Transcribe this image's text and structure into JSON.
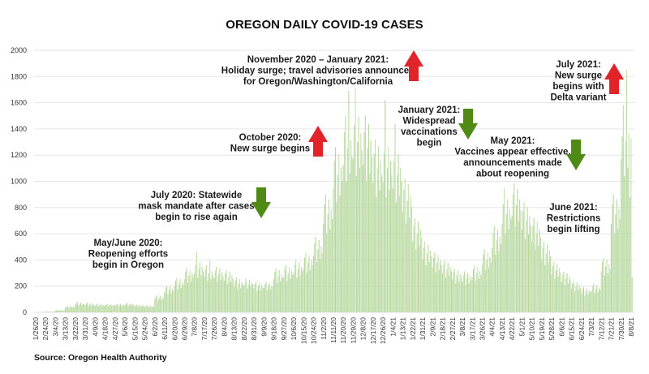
{
  "chart_data": {
    "type": "bar",
    "title": "OREGON DAILY COVID-19 CASES",
    "source": "Source: Oregon Health Authority",
    "ylim": [
      0,
      2000
    ],
    "yticks": [
      0,
      200,
      400,
      600,
      800,
      1000,
      1200,
      1400,
      1600,
      1800,
      2000
    ],
    "grid": true,
    "bar_color": "#b3d699",
    "tick_every_days": 9,
    "tick_labels": [
      "1/26/20",
      "2/24/20",
      "3/4/20",
      "3/13/20",
      "3/22/20",
      "3/31/20",
      "4/9/20",
      "4/18/20",
      "4/27/20",
      "5/6/20",
      "5/15/20",
      "5/24/20",
      "6/2/20",
      "6/11/20",
      "6/20/20",
      "6/29/20",
      "7/8/20",
      "7/17/20",
      "7/26/20",
      "8/4/20",
      "8/13/20",
      "8/22/20",
      "8/31/20",
      "9/9/20",
      "9/18/20",
      "9/27/20",
      "10/6/20",
      "10/15/20",
      "10/24/20",
      "11/2/20",
      "11/11/20",
      "11/20/20",
      "11/29/20",
      "12/8/20",
      "12/17/20",
      "12/26/20",
      "1/4/21",
      "1/13/21",
      "1/22/21",
      "1/31/21",
      "2/9/21",
      "2/18/21",
      "2/27/21",
      "3/8/21",
      "3/17/21",
      "3/26/21",
      "4/4/21",
      "4/13/21",
      "4/22/21",
      "5/1/21",
      "5/10/21",
      "5/19/21",
      "5/28/21",
      "6/6/21",
      "6/15/21",
      "6/24/21",
      "7/3/21",
      "7/12/21",
      "7/21/21",
      "7/30/21",
      "8/8/21"
    ],
    "values": [
      0,
      1,
      2,
      1,
      2,
      3,
      2,
      2,
      3,
      4,
      6,
      6,
      4,
      5,
      6,
      4,
      5,
      5,
      13,
      17,
      18,
      12,
      15,
      17,
      13,
      16,
      14,
      36,
      44,
      48,
      32,
      40,
      46,
      34,
      42,
      38,
      59,
      72,
      78,
      52,
      65,
      75,
      55,
      68,
      62,
      54,
      66,
      72,
      48,
      60,
      69,
      51,
      63,
      57,
      50,
      61,
      66,
      44,
      55,
      63,
      47,
      58,
      52,
      52,
      58,
      64,
      46,
      57,
      61,
      49,
      56,
      54,
      50,
      61,
      66,
      44,
      55,
      63,
      47,
      58,
      52,
      54,
      66,
      72,
      48,
      60,
      69,
      51,
      63,
      57,
      45,
      55,
      60,
      40,
      50,
      58,
      43,
      53,
      48,
      41,
      50,
      54,
      36,
      45,
      52,
      38,
      47,
      43,
      99,
      121,
      132,
      88,
      110,
      127,
      94,
      116,
      105,
      153,
      187,
      204,
      136,
      170,
      196,
      145,
      179,
      162,
      198,
      242,
      264,
      176,
      220,
      253,
      187,
      231,
      209,
      252,
      308,
      336,
      224,
      280,
      322,
      238,
      294,
      266,
      297,
      363,
      460,
      264,
      330,
      380,
      281,
      347,
      314,
      270,
      330,
      360,
      240,
      300,
      400,
      255,
      315,
      285,
      261,
      319,
      348,
      232,
      290,
      334,
      247,
      305,
      276,
      243,
      297,
      324,
      216,
      270,
      311,
      230,
      284,
      257,
      198,
      242,
      264,
      176,
      220,
      253,
      187,
      231,
      209,
      205,
      236,
      258,
      182,
      214,
      247,
      193,
      225,
      215,
      180,
      220,
      240,
      160,
      200,
      230,
      170,
      210,
      190,
      186,
      214,
      234,
      166,
      206,
      224,
      176,
      204,
      196,
      252,
      308,
      336,
      224,
      280,
      322,
      238,
      294,
      266,
      270,
      330,
      360,
      240,
      300,
      345,
      255,
      315,
      285,
      297,
      363,
      396,
      264,
      330,
      380,
      281,
      347,
      314,
      342,
      418,
      456,
      304,
      380,
      437,
      323,
      399,
      361,
      432,
      528,
      576,
      384,
      480,
      552,
      408,
      504,
      456,
      675,
      825,
      900,
      600,
      750,
      863,
      638,
      788,
      713,
      945,
      1155,
      1260,
      840,
      1050,
      1208,
      893,
      1103,
      998,
      1125,
      1375,
      1500,
      1000,
      1250,
      1690,
      1063,
      1313,
      1188,
      1170,
      1430,
      1710,
      1040,
      1300,
      1495,
      1105,
      1365,
      1235,
      1125,
      1375,
      1500,
      1000,
      1250,
      1438,
      1063,
      1313,
      1188,
      990,
      1210,
      1320,
      880,
      1100,
      1265,
      935,
      1155,
      1045,
      990,
      1210,
      1620,
      880,
      1100,
      1265,
      935,
      1155,
      1045,
      945,
      1155,
      1440,
      840,
      1050,
      1208,
      893,
      1103,
      998,
      765,
      935,
      1020,
      680,
      850,
      978,
      723,
      893,
      808,
      540,
      660,
      720,
      480,
      600,
      690,
      510,
      630,
      570,
      405,
      495,
      540,
      360,
      450,
      518,
      383,
      473,
      428,
      342,
      418,
      456,
      304,
      380,
      437,
      323,
      399,
      361,
      297,
      363,
      396,
      264,
      330,
      380,
      281,
      347,
      314,
      252,
      308,
      336,
      224,
      280,
      322,
      238,
      294,
      266,
      234,
      286,
      312,
      208,
      260,
      299,
      221,
      273,
      247,
      270,
      330,
      360,
      240,
      300,
      345,
      255,
      315,
      285,
      360,
      440,
      480,
      320,
      400,
      460,
      340,
      420,
      380,
      495,
      605,
      660,
      440,
      550,
      633,
      468,
      578,
      523,
      675,
      825,
      945,
      600,
      750,
      863,
      638,
      788,
      713,
      738,
      902,
      984,
      656,
      820,
      943,
      697,
      861,
      779,
      630,
      770,
      840,
      560,
      700,
      805,
      595,
      735,
      665,
      540,
      660,
      720,
      480,
      600,
      690,
      510,
      630,
      570,
      405,
      495,
      540,
      360,
      450,
      518,
      383,
      473,
      428,
      288,
      352,
      384,
      256,
      320,
      368,
      272,
      336,
      304,
      234,
      286,
      312,
      208,
      260,
      299,
      221,
      273,
      247,
      180,
      220,
      240,
      160,
      200,
      230,
      170,
      210,
      190,
      144,
      176,
      192,
      128,
      160,
      184,
      136,
      168,
      152,
      162,
      198,
      216,
      144,
      180,
      207,
      153,
      189,
      171,
      315,
      385,
      420,
      280,
      350,
      403,
      298,
      368,
      333,
      675,
      825,
      900,
      600,
      750,
      863,
      638,
      788,
      713,
      1170,
      1340,
      1580,
      1040,
      1300,
      1850,
      1105,
      1365,
      880,
      1330,
      270
    ],
    "annotations": [
      {
        "lines": [
          "November 2020 – January 2021:",
          "Holiday surge; travel advisories announced",
          "for Oregon/Washington/California"
        ],
        "arrow": "up",
        "arrow_color": "#e0242a"
      },
      {
        "lines": [
          "October 2020:",
          "New surge begins"
        ],
        "arrow": "up",
        "arrow_color": "#e0242a"
      },
      {
        "lines": [
          "July 2020: Statewide",
          "mask mandate after cases",
          "begin to rise again"
        ],
        "arrow": "down",
        "arrow_color": "#4e8a14"
      },
      {
        "lines": [
          "May/June 2020:",
          "Reopening efforts",
          "begin in Oregon"
        ],
        "arrow": "none"
      },
      {
        "lines": [
          "January 2021:",
          "Widespread",
          "vaccinations",
          "begin"
        ],
        "arrow": "down",
        "arrow_color": "#4e8a14"
      },
      {
        "lines": [
          "May 2021:",
          "Vaccines appear effective,",
          "announcements made",
          "about reopening"
        ],
        "arrow": "down",
        "arrow_color": "#4e8a14"
      },
      {
        "lines": [
          "June 2021:",
          "Restrictions",
          "begin lifting"
        ],
        "arrow": "none"
      },
      {
        "lines": [
          "July 2021:",
          "New surge",
          "begins with",
          "Delta variant"
        ],
        "arrow": "up",
        "arrow_color": "#e0242a"
      }
    ]
  }
}
